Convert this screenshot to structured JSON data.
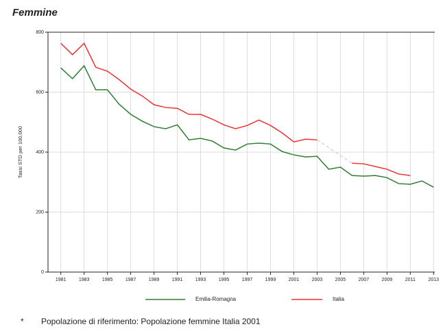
{
  "chart_data": {
    "type": "line",
    "title": "Femmine",
    "y_label": "Tassi STD per 100.000",
    "footnote_marker": "*",
    "footnote": "Popolazione di riferimento: Popolazione femmine Italia 2001",
    "x": [
      1981,
      1982,
      1983,
      1984,
      1985,
      1986,
      1987,
      1988,
      1989,
      1990,
      1991,
      1992,
      1993,
      1994,
      1995,
      1996,
      1997,
      1998,
      1999,
      2000,
      2001,
      2002,
      2003,
      2004,
      2005,
      2006,
      2007,
      2008,
      2009,
      2010,
      2011,
      2012,
      2013
    ],
    "series": [
      {
        "name": "Emilia-Romagna",
        "color": "#2e7d32",
        "values": [
          681,
          645,
          688,
          608,
          608,
          560,
          526,
          503,
          485,
          478,
          491,
          441,
          446,
          437,
          414,
          407,
          427,
          430,
          427,
          402,
          391,
          384,
          386,
          343,
          350,
          322,
          320,
          322,
          315,
          295,
          293,
          304,
          283
        ]
      },
      {
        "name": "Italia",
        "color": "#f03030",
        "values": [
          763,
          725,
          763,
          683,
          670,
          642,
          610,
          587,
          558,
          549,
          546,
          526,
          526,
          510,
          491,
          478,
          489,
          507,
          489,
          464,
          434,
          443,
          441,
          null,
          null,
          363,
          361,
          352,
          343,
          327,
          322,
          null,
          null
        ]
      }
    ],
    "xlim": [
      1979.9,
      2013.1
    ],
    "ylim": [
      0,
      800
    ],
    "xticks": [
      1981,
      1983,
      1985,
      1987,
      1989,
      1991,
      1993,
      1995,
      1997,
      1999,
      2001,
      2003,
      2005,
      2007,
      2009,
      2011,
      2013
    ],
    "yticks": [
      0,
      200,
      400,
      600,
      800
    ],
    "grid": true,
    "legend": "bottom"
  }
}
